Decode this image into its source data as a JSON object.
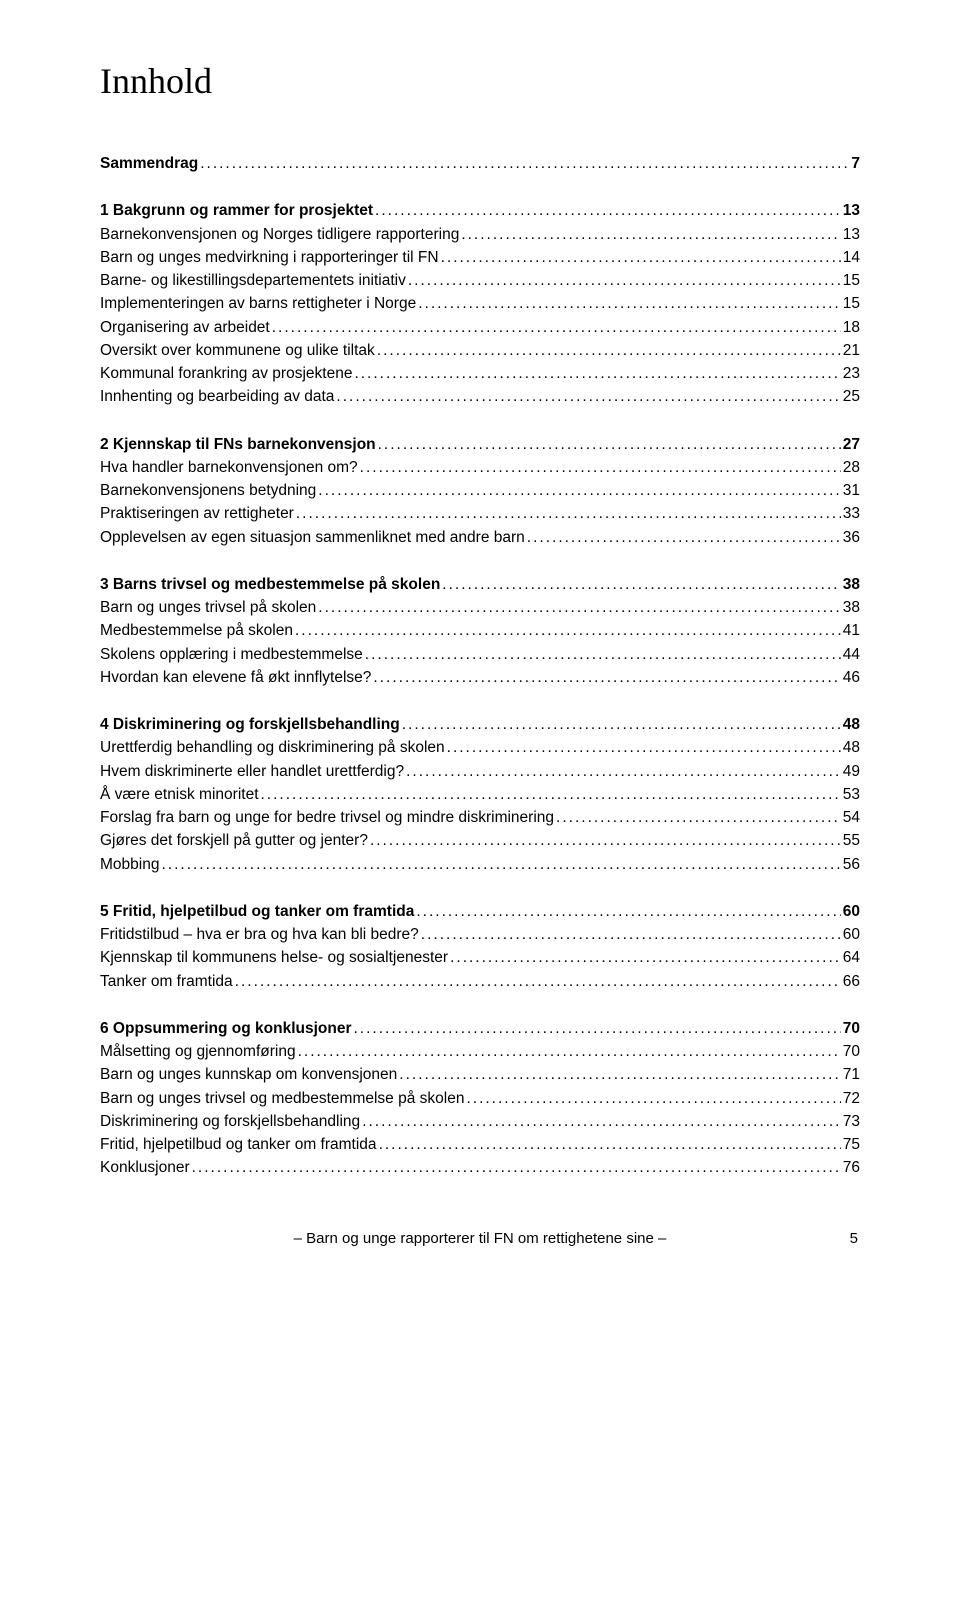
{
  "title": "Innhold",
  "sections": [
    {
      "entries": [
        {
          "label": "Sammendrag",
          "page": "7",
          "bold": true
        }
      ]
    },
    {
      "entries": [
        {
          "label": "1 Bakgrunn og rammer for prosjektet",
          "page": "13",
          "bold": true
        },
        {
          "label": "Barnekonvensjonen og Norges tidligere rapportering",
          "page": "13",
          "bold": false
        },
        {
          "label": "Barn og unges medvirkning i rapporteringer til FN",
          "page": "14",
          "bold": false
        },
        {
          "label": "Barne- og likestillingsdepartementets initiativ",
          "page": "15",
          "bold": false
        },
        {
          "label": "Implementeringen av barns rettigheter i Norge",
          "page": "15",
          "bold": false
        },
        {
          "label": "Organisering av arbeidet",
          "page": "18",
          "bold": false
        },
        {
          "label": "Oversikt over kommunene og ulike tiltak",
          "page": "21",
          "bold": false
        },
        {
          "label": "Kommunal forankring av prosjektene",
          "page": "23",
          "bold": false
        },
        {
          "label": "Innhenting og bearbeiding av data",
          "page": "25",
          "bold": false
        }
      ]
    },
    {
      "entries": [
        {
          "label": "2 Kjennskap til FNs barnekonvensjon",
          "page": "27",
          "bold": true
        },
        {
          "label": "Hva handler barnekonvensjonen om?",
          "page": "28",
          "bold": false
        },
        {
          "label": "Barnekonvensjonens betydning",
          "page": "31",
          "bold": false
        },
        {
          "label": "Praktiseringen av rettigheter",
          "page": "33",
          "bold": false
        },
        {
          "label": "Opplevelsen av egen situasjon sammenliknet med andre barn",
          "page": "36",
          "bold": false
        }
      ]
    },
    {
      "entries": [
        {
          "label": "3 Barns trivsel og medbestemmelse på skolen",
          "page": "38",
          "bold": true
        },
        {
          "label": "Barn og unges trivsel på skolen",
          "page": "38",
          "bold": false
        },
        {
          "label": "Medbestemmelse på skolen",
          "page": "41",
          "bold": false
        },
        {
          "label": "Skolens opplæring i medbestemmelse",
          "page": "44",
          "bold": false
        },
        {
          "label": "Hvordan kan elevene få økt innflytelse?",
          "page": "46",
          "bold": false
        }
      ]
    },
    {
      "entries": [
        {
          "label": "4 Diskriminering og forskjellsbehandling",
          "page": "48",
          "bold": true
        },
        {
          "label": "Urettferdig behandling og diskriminering på skolen",
          "page": "48",
          "bold": false
        },
        {
          "label": "Hvem diskriminerte eller handlet urettferdig?",
          "page": "49",
          "bold": false
        },
        {
          "label": "Å være etnisk minoritet",
          "page": "53",
          "bold": false
        },
        {
          "label": "Forslag fra barn og unge for bedre trivsel og mindre diskriminering",
          "page": "54",
          "bold": false
        },
        {
          "label": "Gjøres det forskjell på gutter og jenter?",
          "page": "55",
          "bold": false
        },
        {
          "label": "Mobbing",
          "page": "56",
          "bold": false
        }
      ]
    },
    {
      "entries": [
        {
          "label": "5 Fritid, hjelpetilbud og tanker om framtida",
          "page": "60",
          "bold": true
        },
        {
          "label": "Fritidstilbud – hva er bra og hva kan bli bedre?",
          "page": "60",
          "bold": false
        },
        {
          "label": "Kjennskap til kommunens helse- og sosialtjenester",
          "page": "64",
          "bold": false
        },
        {
          "label": "Tanker om framtida",
          "page": "66",
          "bold": false
        }
      ]
    },
    {
      "entries": [
        {
          "label": "6 Oppsummering og konklusjoner",
          "page": "70",
          "bold": true
        },
        {
          "label": "Målsetting og gjennomføring",
          "page": "70",
          "bold": false
        },
        {
          "label": "Barn og unges kunnskap om konvensjonen",
          "page": "71",
          "bold": false
        },
        {
          "label": "Barn og unges trivsel og medbestemmelse på skolen",
          "page": "72",
          "bold": false
        },
        {
          "label": "Diskriminering og forskjellsbehandling",
          "page": "73",
          "bold": false
        },
        {
          "label": "Fritid, hjelpetilbud og tanker om framtida",
          "page": "75",
          "bold": false
        },
        {
          "label": "Konklusjoner",
          "page": "76",
          "bold": false
        }
      ]
    }
  ],
  "footer": {
    "text": "– Barn og unge rapporterer til FN om rettighetene sine –",
    "page": "5"
  }
}
